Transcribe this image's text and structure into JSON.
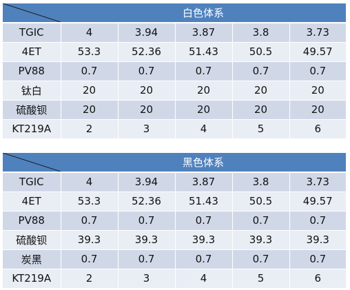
{
  "tables": [
    {
      "title": "白色体系",
      "rows": [
        {
          "label": "TGIC",
          "values": [
            "4",
            "3.94",
            "3.87",
            "3.8",
            "3.73"
          ]
        },
        {
          "label": "4ET",
          "values": [
            "53.3",
            "52.36",
            "51.43",
            "50.5",
            "49.57"
          ]
        },
        {
          "label": "PV88",
          "values": [
            "0.7",
            "0.7",
            "0.7",
            "0.7",
            "0.7"
          ]
        },
        {
          "label": "钛白",
          "values": [
            "20",
            "20",
            "20",
            "20",
            "20"
          ]
        },
        {
          "label": "硫酸钡",
          "values": [
            "20",
            "20",
            "20",
            "20",
            "20"
          ]
        },
        {
          "label": "KT219A",
          "values": [
            "2",
            "3",
            "4",
            "5",
            "6"
          ]
        }
      ]
    },
    {
      "title": "黑色体系",
      "rows": [
        {
          "label": "TGIC",
          "values": [
            "4",
            "3.94",
            "3.87",
            "3.8",
            "3.73"
          ]
        },
        {
          "label": "4ET",
          "values": [
            "53.3",
            "52.36",
            "51.43",
            "50.5",
            "49.57"
          ]
        },
        {
          "label": "PV88",
          "values": [
            "0.7",
            "0.7",
            "0.7",
            "0.7",
            "0.7"
          ]
        },
        {
          "label": "硫酸钡",
          "values": [
            "39.3",
            "39.3",
            "39.3",
            "39.3",
            "39.3"
          ]
        },
        {
          "label": "炭黑",
          "values": [
            "0.7",
            "0.7",
            "0.7",
            "0.7",
            "0.7"
          ]
        },
        {
          "label": "KT219A",
          "values": [
            "2",
            "3",
            "4",
            "5",
            "6"
          ]
        }
      ]
    }
  ]
}
